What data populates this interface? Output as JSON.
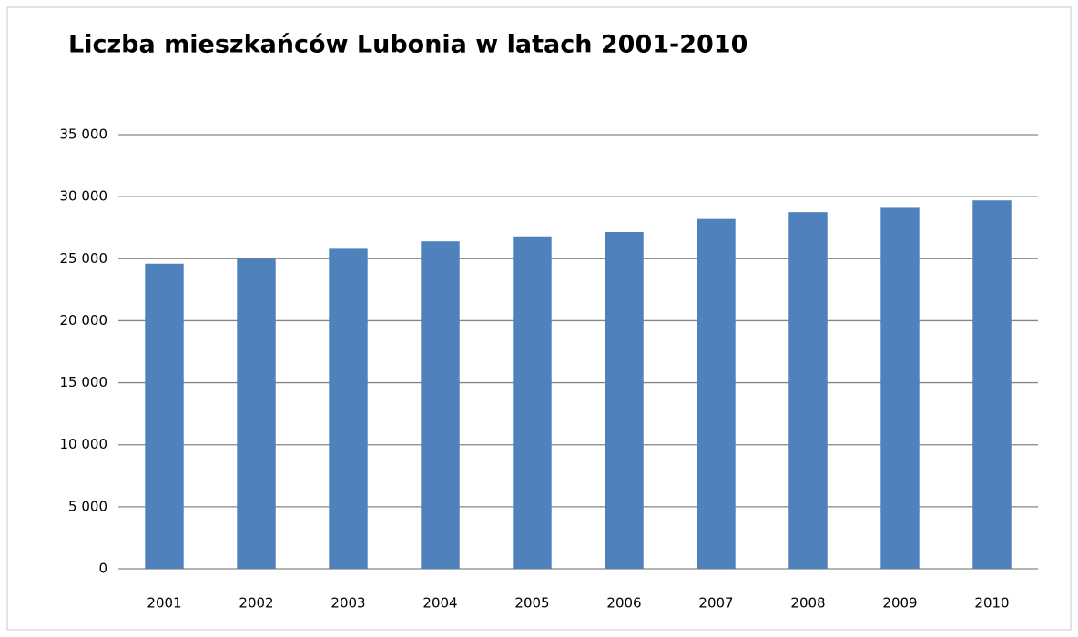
{
  "chart_data": {
    "type": "bar",
    "title": "Liczba mieszkańców Lubonia w latach 2001-2010",
    "categories": [
      "2001",
      "2002",
      "2003",
      "2004",
      "2005",
      "2006",
      "2007",
      "2008",
      "2009",
      "2010"
    ],
    "values": [
      24600,
      25000,
      25800,
      26400,
      26800,
      27150,
      28200,
      28750,
      29100,
      29700
    ],
    "color": "#4f81bd",
    "ylim": [
      0,
      35000
    ],
    "yticks": [
      0,
      {
        "value": 5000,
        "label": "5 000"
      },
      {
        "value": 10000,
        "label": "10 000"
      },
      {
        "value": 15000,
        "label": "15 000"
      },
      {
        "value": 20000,
        "label": "20 000"
      },
      {
        "value": 25000,
        "label": "25 000"
      },
      {
        "value": 30000,
        "label": "30 000"
      },
      {
        "value": 35000,
        "label": "35 000"
      }
    ],
    "grid": true
  }
}
